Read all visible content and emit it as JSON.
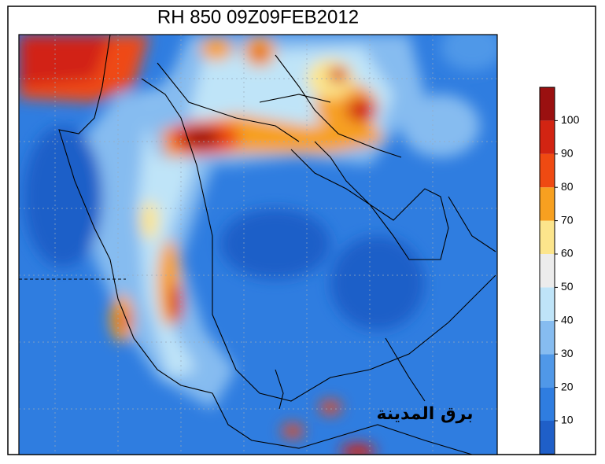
{
  "title": "RH 850 09Z09FEB2012",
  "colorbar": {
    "ticks": [
      10,
      20,
      30,
      40,
      50,
      60,
      70,
      80,
      90,
      100
    ],
    "colors": [
      "#1f5fc8",
      "#2f7de0",
      "#5098e8",
      "#86bcf0",
      "#bfe4f8",
      "#ececec",
      "#fce58c",
      "#f7a020",
      "#ef4a12",
      "#d22412",
      "#9a1010"
    ]
  },
  "watermark": "برق المدينة"
}
